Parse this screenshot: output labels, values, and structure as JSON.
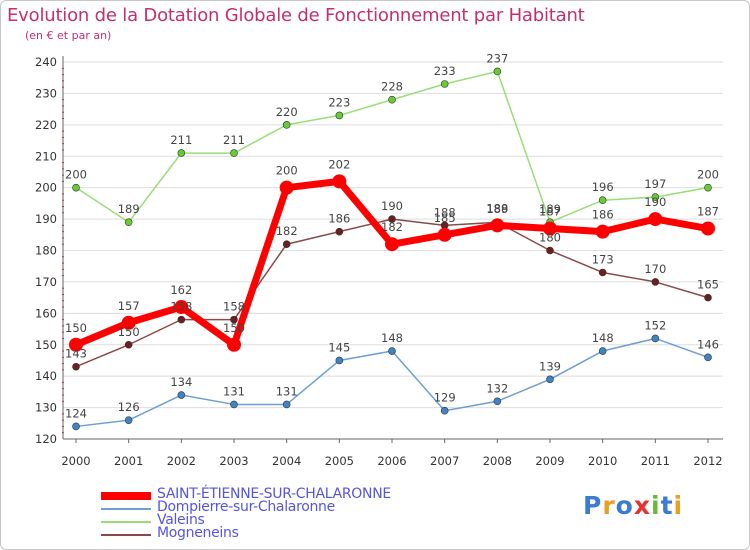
{
  "title": "Evolution de la Dotation Globale de Fonctionnement par Habitant",
  "subtitle": "(en € et par an)",
  "logo_text": "Proxiti",
  "colors": {
    "title": "#c2306f",
    "legend_text": "#5555dd",
    "grid": "#dddddd",
    "axis": "#666666",
    "tick_red": "#cc2222"
  },
  "chart_data": {
    "type": "line",
    "title": "Evolution de la Dotation Globale de Fonctionnement par Habitant",
    "subtitle": "(en € et par an)",
    "xlabel": "",
    "ylabel": "",
    "ylim": [
      120,
      240
    ],
    "yticks": [
      120,
      130,
      140,
      150,
      160,
      170,
      180,
      190,
      200,
      210,
      220,
      230,
      240
    ],
    "grid": "horizontal",
    "legend_position": "bottom",
    "x": [
      "2000",
      "2001",
      "2002",
      "2003",
      "2004",
      "2005",
      "2006",
      "2007",
      "2008",
      "2009",
      "2010",
      "2011",
      "2012"
    ],
    "series": [
      {
        "name": "SAINT-ÉTIENNE-SUR-CHALARONNE",
        "color": "#ff0000",
        "marker_color": "#ff0000",
        "emphasis": true,
        "values": [
          150,
          157,
          162,
          150,
          200,
          202,
          182,
          185,
          188,
          187,
          186,
          190,
          187
        ]
      },
      {
        "name": "Dompierre-sur-Chalaronne",
        "color": "#6f9fd0",
        "marker_color": "#3d85c6",
        "emphasis": false,
        "values": [
          124,
          126,
          134,
          131,
          131,
          145,
          148,
          129,
          132,
          139,
          148,
          152,
          146
        ]
      },
      {
        "name": "Valeins",
        "color": "#99dd77",
        "marker_color": "#66cc33",
        "emphasis": false,
        "values": [
          200,
          189,
          211,
          211,
          220,
          223,
          228,
          233,
          237,
          189,
          196,
          197,
          200
        ]
      },
      {
        "name": "Mogneneins",
        "color": "#8a4a4a",
        "marker_color": "#6b1f1f",
        "emphasis": false,
        "values": [
          143,
          150,
          158,
          158,
          182,
          186,
          190,
          188,
          189,
          180,
          173,
          170,
          165
        ]
      }
    ]
  }
}
